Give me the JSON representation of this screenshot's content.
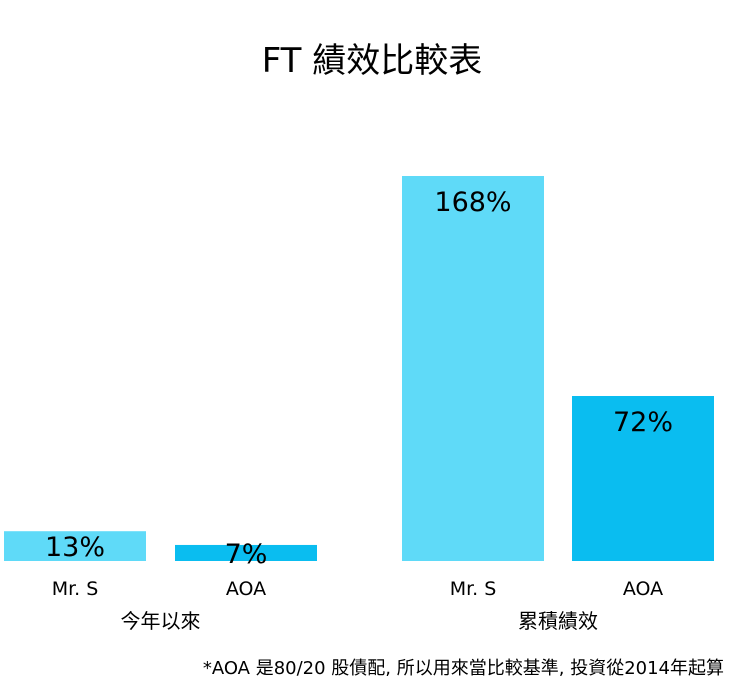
{
  "chart_data": {
    "type": "bar",
    "title": "FT 績效比較表",
    "groups": [
      "今年以來",
      "累積績效"
    ],
    "categories": [
      "Mr. S",
      "AOA"
    ],
    "series": [
      {
        "name": "今年以來",
        "values": [
          13,
          7
        ],
        "labels": [
          "13%",
          "7%"
        ]
      },
      {
        "name": "累積績效",
        "values": [
          168,
          72
        ],
        "labels": [
          "168%",
          "72%"
        ]
      }
    ],
    "colors": {
      "Mr. S": "#5fdaf8",
      "AOA": "#0abdf0"
    },
    "ylim": [
      0,
      170
    ],
    "grid": false,
    "footnote": "*AOA 是80/20 股債配, 所以用來當比較基準, 投資從2014年起算"
  }
}
